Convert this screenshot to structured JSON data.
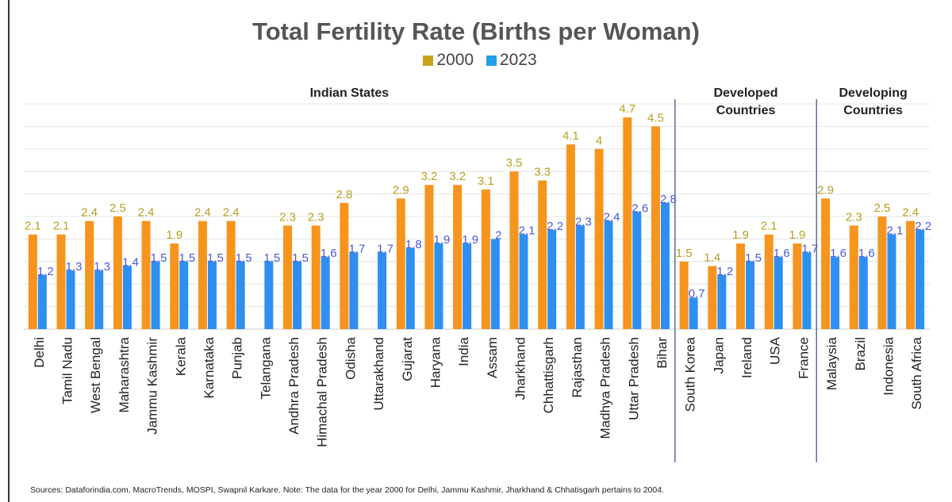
{
  "chart_data": {
    "type": "bar",
    "title": "Total Fertility Rate (Births per Woman)",
    "categories": [
      "Delhi",
      "Tamil Nadu",
      "West Bengal",
      "Maharashtra",
      "Jammu Kashmir",
      "Kerala",
      "Karnataka",
      "Punjab",
      "Telangana",
      "Andhra Pradesh",
      "Himachal Pradesh",
      "Odisha",
      "Uttarakhand",
      "Gujarat",
      "Haryana",
      "India",
      "Assam",
      "Jharkhand",
      "Chhattisgarh",
      "Rajasthan",
      "Madhya Pradesh",
      "Uttar Pradesh",
      "Bihar",
      "South Korea",
      "Japan",
      "Ireland",
      "USA",
      "France",
      "Malaysia",
      "Brazil",
      "Indonesia",
      "South Africa"
    ],
    "series": [
      {
        "name": "2000",
        "color": "#f7941d",
        "label_color": "#b8a020",
        "values": [
          2.1,
          2.1,
          2.4,
          2.5,
          2.4,
          1.9,
          2.4,
          2.4,
          null,
          2.3,
          2.3,
          2.8,
          null,
          2.9,
          3.2,
          3.2,
          3.1,
          3.5,
          3.3,
          4.1,
          4,
          4.7,
          4.5,
          1.5,
          1.4,
          1.9,
          2.1,
          1.9,
          2.9,
          2.3,
          2.5,
          2.4
        ]
      },
      {
        "name": "2023",
        "color": "#2e8ff0",
        "label_color": "#4a5ad8",
        "values": [
          1.2,
          1.3,
          1.3,
          1.4,
          1.5,
          1.5,
          1.5,
          1.5,
          1.5,
          1.5,
          1.6,
          1.7,
          1.7,
          1.8,
          1.9,
          1.9,
          2,
          2.1,
          2.2,
          2.3,
          2.4,
          2.6,
          2.8,
          0.7,
          1.2,
          1.5,
          1.6,
          1.7,
          1.6,
          1.6,
          2.1,
          2.2
        ]
      }
    ],
    "groups": [
      {
        "label": "Indian States",
        "count": 23
      },
      {
        "label": "Developed Countries",
        "count": 5
      },
      {
        "label": "Developing Countries",
        "count": 4
      }
    ],
    "ylim": [
      0,
      5
    ],
    "grid": true,
    "legend": "top-center",
    "xlabel": "",
    "ylabel": ""
  },
  "sources": "Sources: Dataforindia.com, MacroTrends, MOSPI, Swapnil Karkare. Note: The data for the year 2000 for Delhi, Jammu Kashmir, Jharkhand & Chhatisgarh pertains to 2004."
}
